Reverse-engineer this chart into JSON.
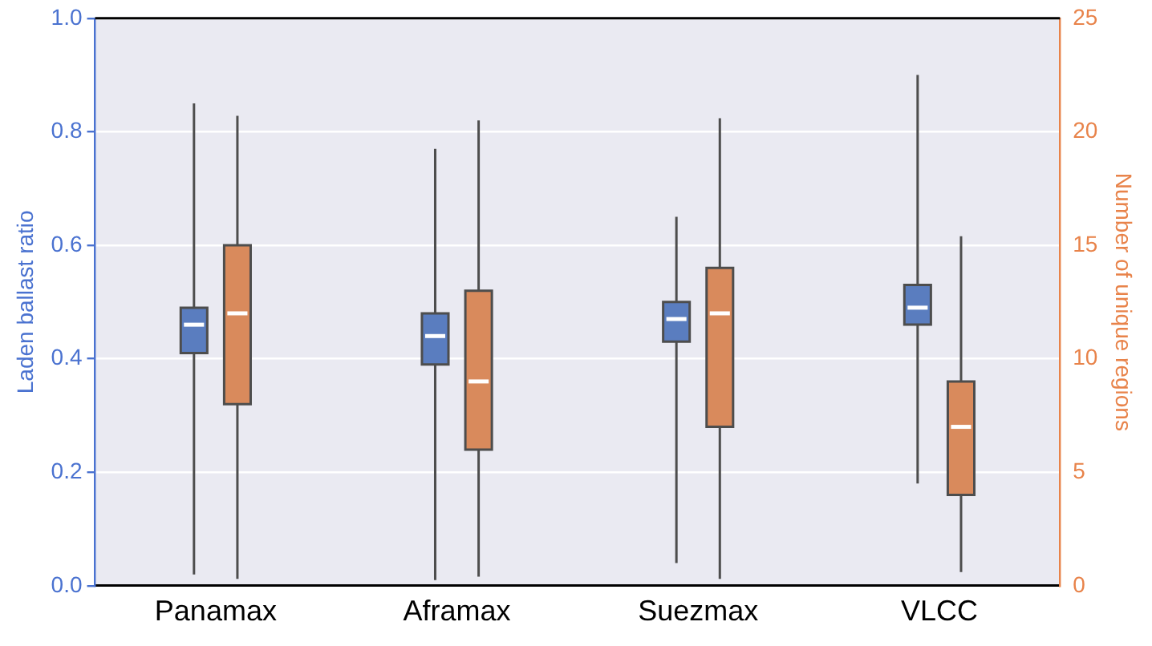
{
  "chart_data": {
    "type": "box",
    "categories": [
      "Panamax",
      "Aframax",
      "Suezmax",
      "VLCC"
    ],
    "ylabel": "Laden ballast ratio",
    "y2label": "Number of unique regions",
    "ylim": [
      0,
      1
    ],
    "yticks": [
      {
        "value": 0,
        "label": "0.0"
      },
      {
        "value": 0.2,
        "label": "0.2"
      },
      {
        "value": 0.4,
        "label": "0.4"
      },
      {
        "value": 0.6,
        "label": "0.6"
      },
      {
        "value": 0.8,
        "label": "0.8"
      },
      {
        "value": 1,
        "label": "1.0"
      }
    ],
    "y2lim": [
      0,
      25
    ],
    "y2ticks": [
      0,
      5,
      10,
      15,
      20,
      25
    ],
    "grid": "y",
    "series": [
      {
        "color": "#5a7dbf",
        "boxes": [
          {
            "low": 0.02,
            "q1": 0.41,
            "median": 0.46,
            "q3": 0.49,
            "high": 0.85
          },
          {
            "low": 0.01,
            "q1": 0.39,
            "median": 0.44,
            "q3": 0.48,
            "high": 0.77
          },
          {
            "low": 0.04,
            "q1": 0.43,
            "median": 0.47,
            "q3": 0.5,
            "high": 0.65
          },
          {
            "low": 0.18,
            "q1": 0.46,
            "median": 0.49,
            "q3": 0.53,
            "high": 0.9
          }
        ]
      },
      {
        "color": "#d98a5c",
        "axis": "y2",
        "boxes": [
          {
            "low": 0.3,
            "q1": 8,
            "median": 12,
            "q3": 15,
            "high": 20.7
          },
          {
            "low": 0.4,
            "q1": 6,
            "median": 9,
            "q3": 13,
            "high": 20.5
          },
          {
            "low": 0.3,
            "q1": 7,
            "median": 12,
            "q3": 14,
            "high": 20.6
          },
          {
            "low": 0.6,
            "q1": 4,
            "median": 7,
            "q3": 9,
            "high": 15.4
          }
        ]
      }
    ]
  }
}
